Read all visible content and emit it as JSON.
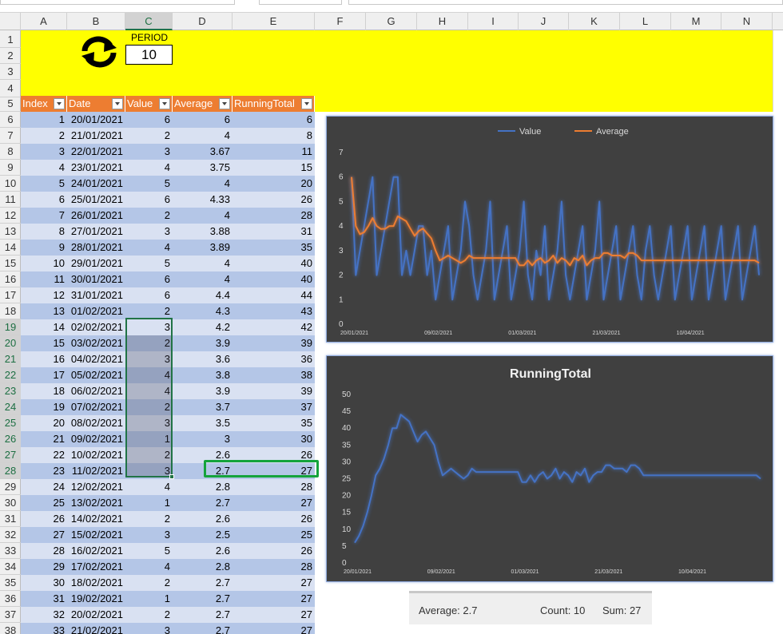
{
  "columns": [
    "A",
    "B",
    "C",
    "D",
    "E",
    "F",
    "G",
    "H",
    "I",
    "J",
    "K",
    "L",
    "M",
    "N"
  ],
  "selected_column": "C",
  "rows": [
    "1",
    "2",
    "3",
    "4",
    "5",
    "6",
    "7",
    "8",
    "9",
    "10",
    "11",
    "12",
    "13",
    "14",
    "15",
    "16",
    "17",
    "18",
    "19",
    "20",
    "21",
    "22",
    "23",
    "24",
    "25",
    "26",
    "27",
    "28",
    "29",
    "30",
    "31",
    "32",
    "33",
    "34",
    "35",
    "36",
    "37",
    "38"
  ],
  "selected_rows": [
    "19",
    "20",
    "21",
    "22",
    "23",
    "24",
    "25",
    "26",
    "27",
    "28"
  ],
  "period": {
    "label": "PERIOD",
    "value": "10"
  },
  "refresh_icon": "refresh-icon",
  "table": {
    "headers": [
      "Index",
      "Date",
      "Value",
      "Average",
      "RunningTotal"
    ],
    "rows": [
      [
        "1",
        "20/01/2021",
        "6",
        "6",
        "6"
      ],
      [
        "2",
        "21/01/2021",
        "2",
        "4",
        "8"
      ],
      [
        "3",
        "22/01/2021",
        "3",
        "3.67",
        "11"
      ],
      [
        "4",
        "23/01/2021",
        "4",
        "3.75",
        "15"
      ],
      [
        "5",
        "24/01/2021",
        "5",
        "4",
        "20"
      ],
      [
        "6",
        "25/01/2021",
        "6",
        "4.33",
        "26"
      ],
      [
        "7",
        "26/01/2021",
        "2",
        "4",
        "28"
      ],
      [
        "8",
        "27/01/2021",
        "3",
        "3.88",
        "31"
      ],
      [
        "9",
        "28/01/2021",
        "4",
        "3.89",
        "35"
      ],
      [
        "10",
        "29/01/2021",
        "5",
        "4",
        "40"
      ],
      [
        "11",
        "30/01/2021",
        "6",
        "4",
        "40"
      ],
      [
        "12",
        "31/01/2021",
        "6",
        "4.4",
        "44"
      ],
      [
        "13",
        "01/02/2021",
        "2",
        "4.3",
        "43"
      ],
      [
        "14",
        "02/02/2021",
        "3",
        "4.2",
        "42"
      ],
      [
        "15",
        "03/02/2021",
        "2",
        "3.9",
        "39"
      ],
      [
        "16",
        "04/02/2021",
        "3",
        "3.6",
        "36"
      ],
      [
        "17",
        "05/02/2021",
        "4",
        "3.8",
        "38"
      ],
      [
        "18",
        "06/02/2021",
        "4",
        "3.9",
        "39"
      ],
      [
        "19",
        "07/02/2021",
        "2",
        "3.7",
        "37"
      ],
      [
        "20",
        "08/02/2021",
        "3",
        "3.5",
        "35"
      ],
      [
        "21",
        "09/02/2021",
        "1",
        "3",
        "30"
      ],
      [
        "22",
        "10/02/2021",
        "2",
        "2.6",
        "26"
      ],
      [
        "23",
        "11/02/2021",
        "3",
        "2.7",
        "27"
      ],
      [
        "24",
        "12/02/2021",
        "4",
        "2.8",
        "28"
      ],
      [
        "25",
        "13/02/2021",
        "1",
        "2.7",
        "27"
      ],
      [
        "26",
        "14/02/2021",
        "2",
        "2.6",
        "26"
      ],
      [
        "27",
        "15/02/2021",
        "3",
        "2.5",
        "25"
      ],
      [
        "28",
        "16/02/2021",
        "5",
        "2.6",
        "26"
      ],
      [
        "29",
        "17/02/2021",
        "4",
        "2.8",
        "28"
      ],
      [
        "30",
        "18/02/2021",
        "2",
        "2.7",
        "27"
      ],
      [
        "31",
        "19/02/2021",
        "1",
        "2.7",
        "27"
      ],
      [
        "32",
        "20/02/2021",
        "2",
        "2.7",
        "27"
      ],
      [
        "33",
        "21/02/2021",
        "3",
        "2.7",
        "27"
      ]
    ]
  },
  "status": {
    "average": "Average: 2.7",
    "count": "Count: 10",
    "sum": "Sum: 27"
  },
  "colors": {
    "value_series": "#4472c4",
    "average_series": "#ed7d31",
    "table_header": "#ed7d31",
    "banner": "#ffff00",
    "selection": "#217346",
    "highlight": "#14a33c",
    "chart_bg": "#404040"
  },
  "chart_data": [
    {
      "type": "line",
      "title": "",
      "legend": "top",
      "ylim": [
        0,
        7
      ],
      "yticks": [
        "0",
        "1",
        "2",
        "3",
        "4",
        "5",
        "6",
        "7"
      ],
      "xtick_labels": [
        "20/01/2021",
        "09/02/2021",
        "01/03/2021",
        "21/03/2021",
        "10/04/2021"
      ],
      "xtick_index": [
        0,
        20,
        40,
        60,
        80
      ],
      "n_points": 98,
      "series": [
        {
          "name": "Value",
          "values": [
            6,
            2,
            3,
            4,
            5,
            6,
            2,
            3,
            4,
            5,
            6,
            6,
            2,
            3,
            2,
            3,
            4,
            4,
            2,
            3,
            1,
            2,
            3,
            4,
            1,
            2,
            3,
            5,
            4,
            2,
            1,
            2,
            3,
            5,
            1,
            2,
            3,
            4,
            1,
            2,
            3,
            5,
            2,
            1,
            3,
            2,
            4,
            1,
            2,
            3,
            5,
            2,
            1,
            2,
            3,
            4,
            1,
            2,
            3,
            5,
            1,
            2,
            3,
            4,
            1,
            2,
            3,
            4,
            2,
            1,
            3,
            4,
            2,
            1,
            2,
            3,
            4,
            1,
            2,
            3,
            4,
            1,
            2,
            3,
            4,
            1,
            2,
            3,
            4,
            1,
            2,
            3,
            4,
            1,
            2,
            3,
            4,
            2
          ]
        },
        {
          "name": "Average",
          "values": [
            6,
            4,
            3.67,
            3.75,
            4,
            4.33,
            4,
            3.88,
            3.89,
            4,
            4,
            4.4,
            4.3,
            4.2,
            3.9,
            3.6,
            3.8,
            3.9,
            3.7,
            3.5,
            3,
            2.6,
            2.7,
            2.8,
            2.7,
            2.6,
            2.5,
            2.6,
            2.8,
            2.7,
            2.7,
            2.7,
            2.7,
            2.7,
            2.7,
            2.7,
            2.7,
            2.7,
            2.7,
            2.7,
            2.4,
            2.4,
            2.6,
            2.4,
            2.6,
            2.7,
            2.5,
            2.6,
            2.8,
            2.5,
            2.7,
            2.6,
            2.4,
            2.7,
            2.6,
            2.8,
            2.4,
            2.6,
            2.7,
            2.7,
            2.9,
            2.9,
            2.8,
            2.8,
            2.8,
            2.7,
            2.9,
            2.9,
            2.8,
            2.6,
            2.6,
            2.6,
            2.6,
            2.6,
            2.6,
            2.6,
            2.6,
            2.6,
            2.6,
            2.6,
            2.6,
            2.6,
            2.6,
            2.6,
            2.6,
            2.6,
            2.6,
            2.6,
            2.6,
            2.6,
            2.6,
            2.6,
            2.6,
            2.6,
            2.6,
            2.6,
            2.6,
            2.5
          ]
        }
      ]
    },
    {
      "type": "line",
      "title": "RunningTotal",
      "ylim": [
        0,
        50
      ],
      "yticks": [
        "0",
        "5",
        "10",
        "15",
        "20",
        "25",
        "30",
        "35",
        "40",
        "45",
        "50"
      ],
      "xtick_labels": [
        "20/01/2021",
        "09/02/2021",
        "01/03/2021",
        "21/03/2021",
        "10/04/2021"
      ],
      "xtick_index": [
        0,
        20,
        40,
        60,
        80
      ],
      "n_points": 98,
      "series": [
        {
          "name": "RunningTotal",
          "values": [
            6,
            8,
            11,
            15,
            20,
            26,
            28,
            31,
            35,
            40,
            40,
            44,
            43,
            42,
            39,
            36,
            38,
            39,
            37,
            35,
            30,
            26,
            27,
            28,
            27,
            26,
            25,
            26,
            28,
            27,
            27,
            27,
            27,
            27,
            27,
            27,
            27,
            27,
            27,
            27,
            24,
            24,
            26,
            24,
            26,
            27,
            25,
            26,
            28,
            25,
            27,
            26,
            24,
            27,
            26,
            28,
            24,
            26,
            27,
            27,
            29,
            29,
            28,
            28,
            28,
            27,
            29,
            29,
            28,
            26,
            26,
            26,
            26,
            26,
            26,
            26,
            26,
            26,
            26,
            26,
            26,
            26,
            26,
            26,
            26,
            26,
            26,
            26,
            26,
            26,
            26,
            26,
            26,
            26,
            26,
            26,
            26,
            25
          ]
        }
      ]
    }
  ]
}
